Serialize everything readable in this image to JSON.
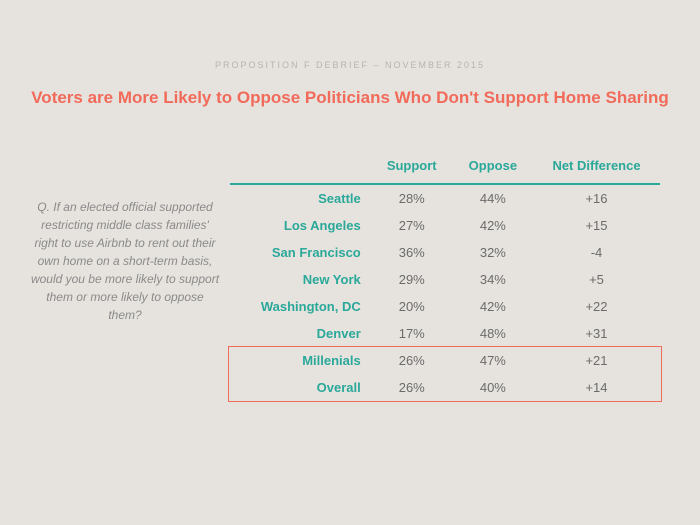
{
  "eyebrow": "PROPOSITION F DEBRIEF – NOVEMBER 2015",
  "title": "Voters are More Likely to Oppose Politicians Who Don't Support Home Sharing",
  "question": "Q. If an elected official supported restricting middle class families' right to use Airbnb to rent out their own home on a short-term basis, would you be more likely to support them or more likely to oppose them?",
  "table": {
    "columns": [
      "Support",
      "Oppose",
      "Net Difference"
    ],
    "rows": [
      {
        "label": "Seattle",
        "support": "28%",
        "oppose": "44%",
        "net": "+16"
      },
      {
        "label": "Los Angeles",
        "support": "27%",
        "oppose": "42%",
        "net": "+15"
      },
      {
        "label": "San Francisco",
        "support": "36%",
        "oppose": "32%",
        "net": "-4"
      },
      {
        "label": "New York",
        "support": "29%",
        "oppose": "34%",
        "net": "+5"
      },
      {
        "label": "Washington, DC",
        "support": "20%",
        "oppose": "42%",
        "net": "+22"
      },
      {
        "label": "Denver",
        "support": "17%",
        "oppose": "48%",
        "net": "+31"
      },
      {
        "label": "Millenials",
        "support": "26%",
        "oppose": "47%",
        "net": "+21"
      },
      {
        "label": "Overall",
        "support": "26%",
        "oppose": "40%",
        "net": "+14"
      }
    ],
    "highlight_rows": [
      6,
      7
    ],
    "colors": {
      "accent": "#2aa89a",
      "title": "#f26a5a",
      "text": "#6b6b6b",
      "muted": "#b8b3ab",
      "background": "#e6e3de",
      "highlight_border": "#f26a5a"
    },
    "fontsize": {
      "title": 17,
      "header": 13,
      "cell": 13,
      "question": 12,
      "eyebrow": 9
    }
  }
}
